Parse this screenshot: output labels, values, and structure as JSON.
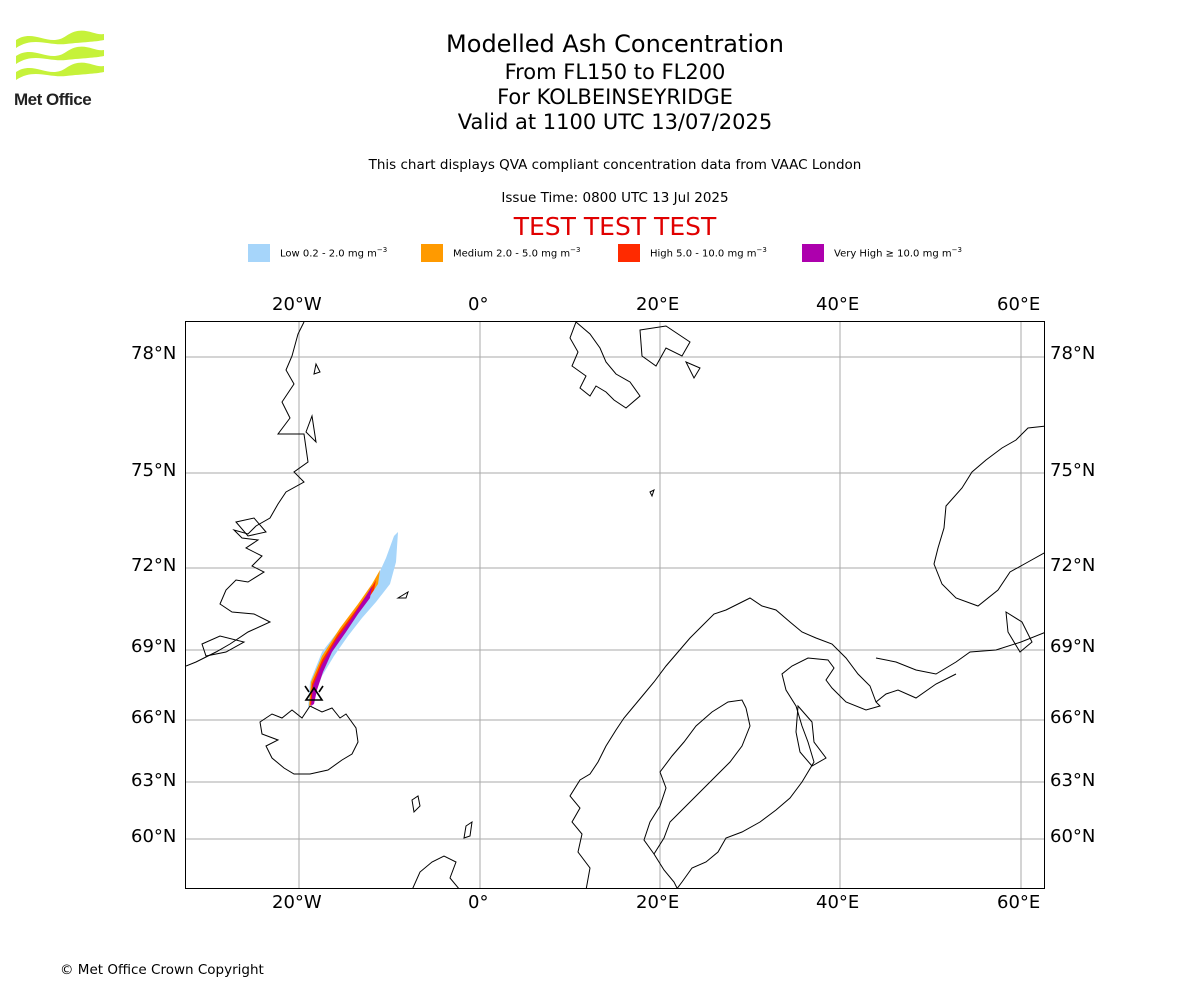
{
  "logo": {
    "text": "Met Office",
    "color": "#c6f23a"
  },
  "title": {
    "main": "Modelled Ash Concentration",
    "levels": "From FL150 to FL200",
    "location": "For KOLBEINSEYRIDGE",
    "valid": "Valid at 1100 UTC 13/07/2025"
  },
  "subtitle": "This chart displays QVA compliant concentration data from VAAC London",
  "issue_time": "Issue Time: 0800 UTC 13 Jul 2025",
  "test_banner": "TEST TEST TEST",
  "legend": [
    {
      "label": "Low 0.2 - 2.0 mg m",
      "exp": "−3",
      "color": "#a6d5fa"
    },
    {
      "label": "Medium 2.0 - 5.0 mg m",
      "exp": "−3",
      "color": "#ff9a00"
    },
    {
      "label": "High 5.0 - 10.0 mg m",
      "exp": "−3",
      "color": "#ff2a00"
    },
    {
      "label": "Very High ≥ 10.0 mg m",
      "exp": "−3",
      "color": "#ad00ad"
    }
  ],
  "longitude_labels": [
    "20°W",
    "0°",
    "20°E",
    "40°E",
    "60°E"
  ],
  "latitude_labels": [
    "78°N",
    "75°N",
    "72°N",
    "69°N",
    "66°N",
    "63°N",
    "60°N"
  ],
  "volcano": {
    "name": "KOLBEINSEYRIDGE",
    "symbol": "volcano-triangle"
  },
  "grid": true,
  "copyright": "© Met Office Crown Copyright"
}
